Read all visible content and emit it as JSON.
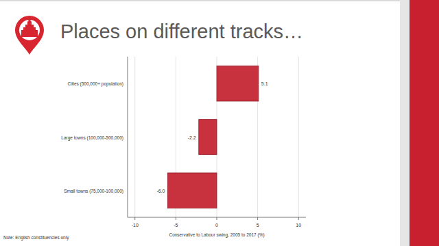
{
  "chart_data": {
    "type": "bar",
    "orientation": "horizontal",
    "title": "Places on different tracks…",
    "categories": [
      "Cities (500,000+ population)",
      "Large towns (100,000-500,000)",
      "Small towns (75,000-100,000)"
    ],
    "values": [
      5.1,
      -2.2,
      -6.0
    ],
    "value_labels": [
      "5.1",
      "-2.2",
      "-6.0"
    ],
    "data_labels": true,
    "color": "#c8323f",
    "xlabel": "Conservative to Labour swing, 2005 to 2017 (%)",
    "xlim": [
      -10.9,
      10.9
    ],
    "xticks": [
      -10,
      -5,
      0,
      5,
      10
    ],
    "grid": true,
    "annotations": [
      "Note: English constituencies only"
    ]
  }
}
